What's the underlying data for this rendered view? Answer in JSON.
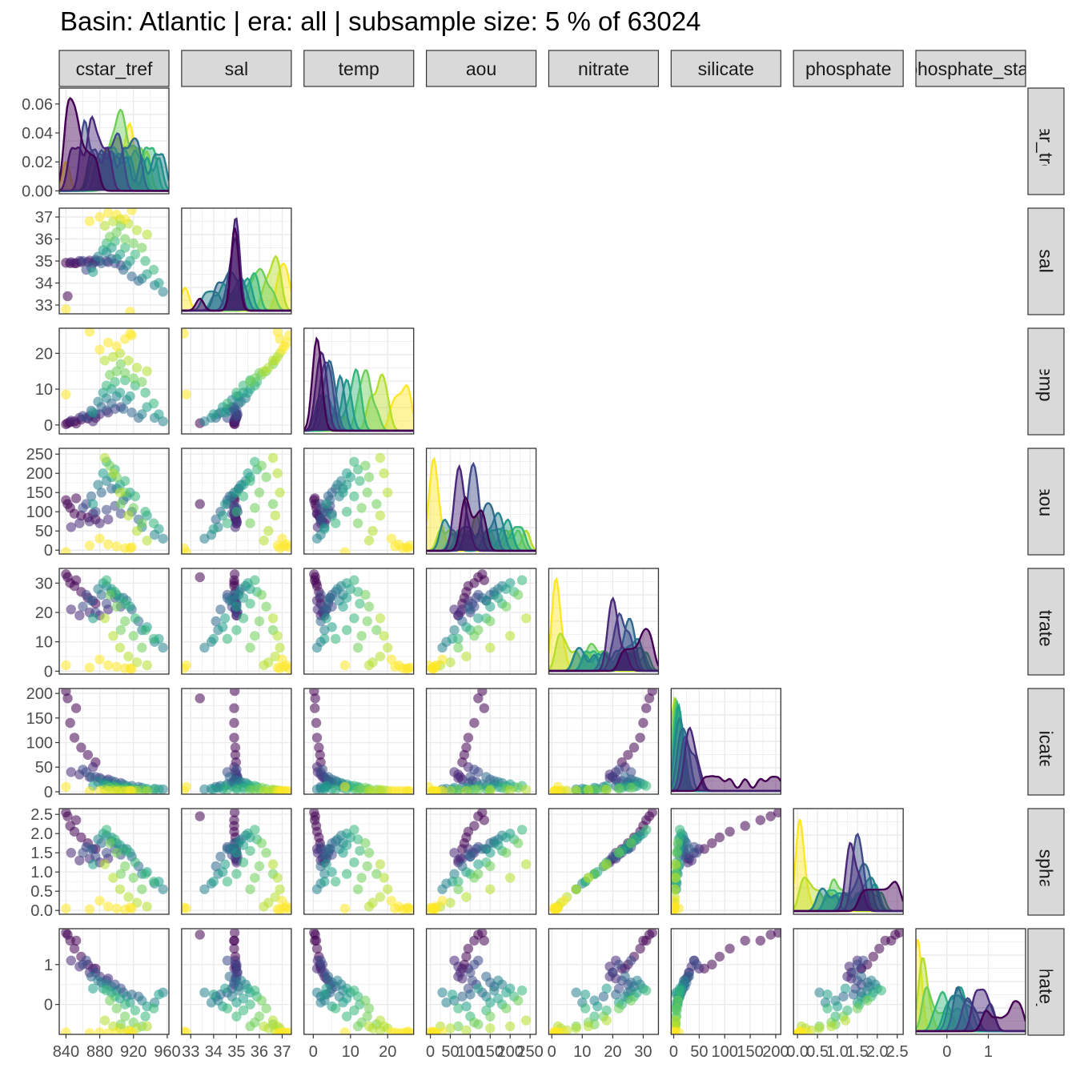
{
  "title": "Basin: Atlantic | era: all | subsample size: 5 % of 63024",
  "chart_data": {
    "type": "scatter",
    "variables": [
      {
        "key": "cstar_tref",
        "label": "cstar_tref",
        "range": [
          832,
          962
        ],
        "ticks": [
          840,
          880,
          920,
          960
        ],
        "tick_labels": [
          "840",
          "880",
          "920",
          "960"
        ]
      },
      {
        "key": "sal",
        "label": "sal",
        "range": [
          32.6,
          37.4
        ],
        "ticks": [
          33,
          34,
          35,
          36,
          37
        ],
        "tick_labels": [
          "33",
          "34",
          "35",
          "36",
          "37"
        ]
      },
      {
        "key": "temp",
        "label": "temp",
        "range": [
          -2.5,
          27
        ],
        "ticks": [
          0,
          10,
          20
        ],
        "tick_labels": [
          "0",
          "10",
          "20"
        ]
      },
      {
        "key": "aou",
        "label": "aou",
        "range": [
          -10,
          265
        ],
        "ticks": [
          0,
          50,
          100,
          150,
          200,
          250
        ],
        "tick_labels": [
          "0",
          "50",
          "100",
          "150",
          "200",
          "250"
        ]
      },
      {
        "key": "nitrate",
        "label": "nitrate",
        "range": [
          -1,
          35
        ],
        "ticks": [
          0,
          10,
          20,
          30
        ],
        "tick_labels": [
          "0",
          "10",
          "20",
          "30"
        ]
      },
      {
        "key": "silicate",
        "label": "silicate",
        "range": [
          -5,
          210
        ],
        "ticks": [
          0,
          50,
          100,
          150,
          200
        ],
        "tick_labels": [
          "0",
          "50",
          "100",
          "150",
          "200"
        ]
      },
      {
        "key": "phosphate",
        "label": "phosphate",
        "range": [
          -0.1,
          2.65
        ],
        "ticks": [
          0.0,
          0.5,
          1.0,
          1.5,
          2.0,
          2.5
        ],
        "tick_labels": [
          "0.0",
          "0.5",
          "1.0",
          "1.5",
          "2.0",
          "2.5"
        ]
      },
      {
        "key": "phosphate_star",
        "label": "phosphate_star",
        "range": [
          -0.75,
          1.9
        ],
        "ticks": [
          0,
          1
        ],
        "tick_labels": [
          "0",
          "1"
        ]
      }
    ],
    "density_y": {
      "ticks": [
        0.0,
        0.02,
        0.04,
        0.06
      ],
      "tick_labels": [
        "0.00",
        "0.02",
        "0.04",
        "0.06"
      ],
      "ylim": [
        -0.002,
        0.071
      ]
    },
    "color_groups": [
      "#440154",
      "#482878",
      "#3e4a89",
      "#31688e",
      "#26828e",
      "#1f9e89",
      "#35b779",
      "#6ece58",
      "#b5de2b",
      "#fde725"
    ],
    "note_points_estimated": true,
    "points": [
      [
        842,
        33.4,
        0.5,
        120,
        32,
        190,
        2.45,
        1.75,
        0
      ],
      [
        845,
        34.9,
        0.8,
        110,
        30,
        140,
        2.2,
        1.6,
        0
      ],
      [
        850,
        34.9,
        1.0,
        95,
        29,
        110,
        2.05,
        1.4,
        0
      ],
      [
        858,
        34.95,
        1.5,
        90,
        27,
        90,
        1.9,
        1.2,
        0
      ],
      [
        866,
        34.95,
        1.8,
        85,
        25,
        75,
        1.75,
        1.0,
        0
      ],
      [
        875,
        34.98,
        2.0,
        80,
        23,
        60,
        1.6,
        0.9,
        0
      ],
      [
        840,
        34.92,
        0.2,
        130,
        33,
        205,
        2.55,
        1.8,
        0
      ],
      [
        852,
        34.9,
        0.4,
        135,
        31,
        170,
        2.35,
        1.6,
        0
      ],
      [
        846,
        34.95,
        1.2,
        60,
        21,
        40,
        1.5,
        1.1,
        1
      ],
      [
        856,
        35.0,
        2.0,
        70,
        19,
        35,
        1.3,
        0.95,
        1
      ],
      [
        868,
        35.02,
        2.5,
        75,
        20,
        30,
        1.35,
        0.8,
        1
      ],
      [
        880,
        35.0,
        3.0,
        70,
        19,
        28,
        1.25,
        0.7,
        1
      ],
      [
        890,
        34.95,
        3.5,
        80,
        21,
        25,
        1.35,
        0.65,
        1
      ],
      [
        872,
        34.9,
        1.0,
        95,
        24,
        50,
        1.6,
        0.9,
        1
      ],
      [
        860,
        35.0,
        2.5,
        110,
        22,
        45,
        1.5,
        1.0,
        2
      ],
      [
        875,
        35.05,
        3.0,
        100,
        20,
        30,
        1.4,
        0.8,
        2
      ],
      [
        888,
        35.0,
        4.0,
        105,
        23,
        22,
        1.5,
        0.6,
        2
      ],
      [
        898,
        34.9,
        4.5,
        115,
        25,
        20,
        1.6,
        0.5,
        2
      ],
      [
        905,
        34.8,
        5.0,
        95,
        22,
        18,
        1.45,
        0.4,
        2
      ],
      [
        864,
        34.6,
        2.0,
        120,
        26,
        40,
        1.65,
        1.1,
        2
      ],
      [
        870,
        34.7,
        4.0,
        140,
        24,
        30,
        1.6,
        0.7,
        3
      ],
      [
        882,
        34.9,
        5.0,
        150,
        26,
        25,
        1.75,
        0.55,
        3
      ],
      [
        894,
        35.1,
        6.0,
        160,
        27,
        22,
        1.8,
        0.45,
        3
      ],
      [
        908,
        34.6,
        4.5,
        130,
        25,
        15,
        1.6,
        0.3,
        3
      ],
      [
        918,
        34.3,
        3.5,
        100,
        21,
        12,
        1.4,
        0.25,
        3
      ],
      [
        926,
        34.1,
        2.0,
        80,
        17,
        10,
        1.15,
        0.2,
        3
      ],
      [
        878,
        35.2,
        6.5,
        170,
        28,
        20,
        1.85,
        0.6,
        4
      ],
      [
        888,
        35.4,
        7.5,
        180,
        29,
        18,
        1.95,
        0.5,
        4
      ],
      [
        900,
        35.1,
        8.0,
        160,
        26,
        15,
        1.75,
        0.35,
        4
      ],
      [
        912,
        34.8,
        7.0,
        140,
        24,
        12,
        1.6,
        0.2,
        4
      ],
      [
        930,
        34.2,
        3.0,
        60,
        14,
        8,
        0.95,
        0.1,
        4
      ],
      [
        945,
        33.9,
        2.0,
        40,
        10,
        6,
        0.7,
        0.05,
        4
      ],
      [
        955,
        33.6,
        1.0,
        30,
        8,
        5,
        0.55,
        0.3,
        4
      ],
      [
        884,
        35.5,
        9.0,
        200,
        30,
        15,
        2.0,
        0.4,
        5
      ],
      [
        894,
        35.6,
        10.0,
        190,
        28,
        12,
        1.9,
        0.3,
        5
      ],
      [
        904,
        35.3,
        9.0,
        170,
        25,
        10,
        1.7,
        0.15,
        5
      ],
      [
        916,
        35.0,
        8.0,
        150,
        22,
        8,
        1.5,
        0.05,
        5
      ],
      [
        936,
        34.4,
        5.0,
        90,
        15,
        6,
        1.0,
        -0.05,
        5
      ],
      [
        950,
        34.0,
        3.0,
        55,
        11,
        5,
        0.75,
        0.25,
        5
      ],
      [
        872,
        34.5,
        3.5,
        120,
        18,
        12,
        1.2,
        0.4,
        5
      ],
      [
        888,
        35.8,
        11.0,
        230,
        31,
        12,
        2.1,
        0.35,
        6
      ],
      [
        898,
        35.9,
        12.0,
        210,
        27,
        10,
        1.85,
        0.2,
        6
      ],
      [
        910,
        35.6,
        12.5,
        180,
        23,
        8,
        1.55,
        0.0,
        6
      ],
      [
        922,
        35.3,
        11.0,
        140,
        18,
        6,
        1.25,
        -0.15,
        6
      ],
      [
        934,
        35.0,
        9.0,
        100,
        14,
        5,
        0.95,
        -0.3,
        6
      ],
      [
        944,
        34.6,
        6.0,
        70,
        11,
        4,
        0.75,
        -0.1,
        6
      ],
      [
        892,
        36.1,
        14.0,
        220,
        26,
        8,
        1.75,
        0.1,
        7
      ],
      [
        900,
        36.3,
        15.0,
        190,
        22,
        6,
        1.5,
        -0.1,
        7
      ],
      [
        910,
        36.0,
        14.5,
        150,
        17,
        5,
        1.15,
        -0.3,
        7
      ],
      [
        920,
        35.8,
        13.0,
        110,
        12,
        4,
        0.85,
        -0.45,
        7
      ],
      [
        930,
        35.6,
        12.0,
        70,
        8,
        3,
        0.55,
        -0.55,
        7
      ],
      [
        905,
        36.6,
        17.0,
        120,
        14,
        4,
        0.95,
        -0.5,
        7
      ],
      [
        886,
        36.6,
        18.0,
        240,
        18,
        4,
        1.2,
        -0.4,
        8
      ],
      [
        896,
        36.8,
        19.0,
        200,
        12,
        3,
        0.85,
        -0.55,
        8
      ],
      [
        904,
        36.9,
        20.0,
        150,
        8,
        2,
        0.55,
        -0.6,
        8
      ],
      [
        914,
        36.7,
        18.0,
        90,
        5,
        2,
        0.35,
        -0.65,
        8
      ],
      [
        924,
        36.4,
        16.0,
        50,
        3,
        1.5,
        0.2,
        -0.6,
        8
      ],
      [
        936,
        36.2,
        15.0,
        25,
        2,
        1,
        0.1,
        -0.55,
        8
      ],
      [
        880,
        37.0,
        21.0,
        30,
        4,
        2,
        0.25,
        -0.7,
        9
      ],
      [
        890,
        37.2,
        23.0,
        15,
        2,
        1.5,
        0.1,
        -0.72,
        9
      ],
      [
        900,
        37.1,
        22.0,
        10,
        1.5,
        1,
        0.05,
        -0.7,
        9
      ],
      [
        910,
        36.9,
        24.0,
        5,
        1,
        1,
        0.02,
        -0.72,
        9
      ],
      [
        918,
        37.3,
        25.0,
        8,
        0.8,
        1,
        0.05,
        -0.7,
        9
      ],
      [
        868,
        36.8,
        26.0,
        12,
        1.2,
        0.8,
        0.03,
        -0.72,
        9
      ],
      [
        840,
        32.8,
        8.5,
        -5,
        2.0,
        10,
        0.05,
        -0.7,
        9
      ],
      [
        916,
        32.7,
        25.5,
        5,
        1.0,
        2,
        0.08,
        -0.68,
        9
      ]
    ]
  }
}
